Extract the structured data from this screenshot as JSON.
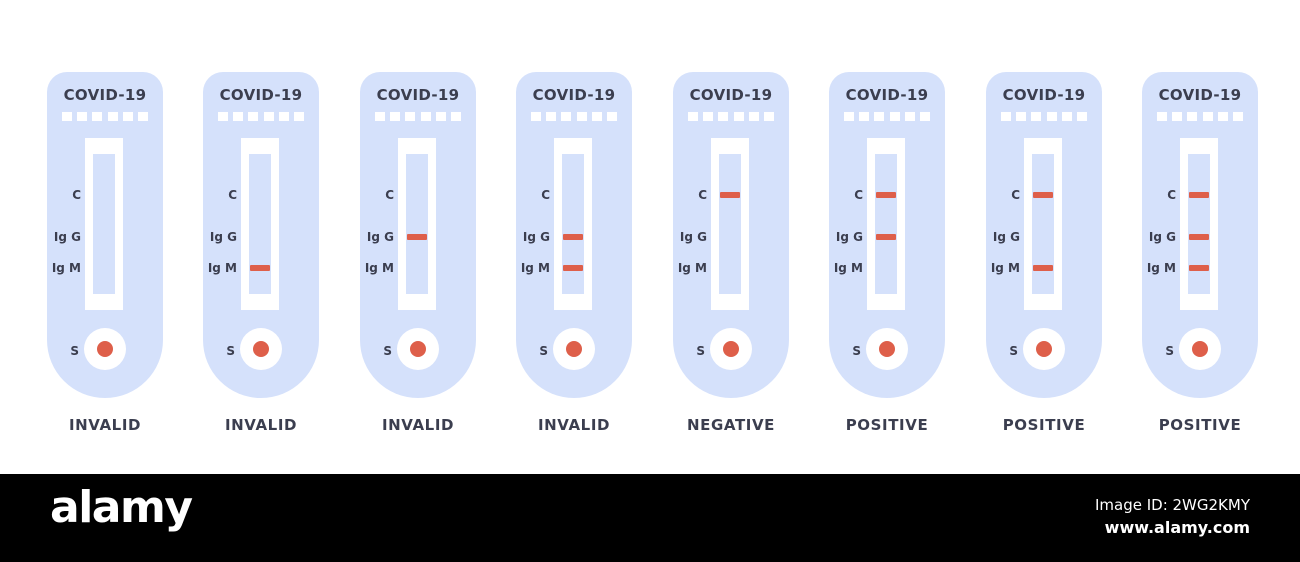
{
  "colors": {
    "cassette": "#d5e1fb",
    "band": "#de5f4a",
    "text": "#3b3e4f",
    "footer": "#000000"
  },
  "tests": [
    {
      "title": "COVID-19",
      "labels": {
        "c": "C",
        "igg": "Ig G",
        "igm": "Ig M",
        "s": "S"
      },
      "bands": {
        "c": false,
        "igg": false,
        "igm": false
      },
      "result": "INVALID"
    },
    {
      "title": "COVID-19",
      "labels": {
        "c": "C",
        "igg": "Ig G",
        "igm": "Ig M",
        "s": "S"
      },
      "bands": {
        "c": false,
        "igg": false,
        "igm": true
      },
      "result": "INVALID"
    },
    {
      "title": "COVID-19",
      "labels": {
        "c": "C",
        "igg": "Ig G",
        "igm": "Ig M",
        "s": "S"
      },
      "bands": {
        "c": false,
        "igg": true,
        "igm": false
      },
      "result": "INVALID"
    },
    {
      "title": "COVID-19",
      "labels": {
        "c": "C",
        "igg": "Ig G",
        "igm": "Ig M",
        "s": "S"
      },
      "bands": {
        "c": false,
        "igg": true,
        "igm": true
      },
      "result": "INVALID"
    },
    {
      "title": "COVID-19",
      "labels": {
        "c": "C",
        "igg": "Ig G",
        "igm": "Ig M",
        "s": "S"
      },
      "bands": {
        "c": true,
        "igg": false,
        "igm": false
      },
      "result": "NEGATIVE"
    },
    {
      "title": "COVID-19",
      "labels": {
        "c": "C",
        "igg": "Ig G",
        "igm": "Ig M",
        "s": "S"
      },
      "bands": {
        "c": true,
        "igg": true,
        "igm": false
      },
      "result": "POSITIVE"
    },
    {
      "title": "COVID-19",
      "labels": {
        "c": "C",
        "igg": "Ig G",
        "igm": "Ig M",
        "s": "S"
      },
      "bands": {
        "c": true,
        "igg": false,
        "igm": true
      },
      "result": "POSITIVE"
    },
    {
      "title": "COVID-19",
      "labels": {
        "c": "C",
        "igg": "Ig G",
        "igm": "Ig M",
        "s": "S"
      },
      "bands": {
        "c": true,
        "igg": true,
        "igm": true
      },
      "result": "POSITIVE"
    }
  ],
  "footer": {
    "brand": "alamy",
    "stock_id": "Image ID: 2WG2KMY",
    "url": "www.alamy.com"
  }
}
